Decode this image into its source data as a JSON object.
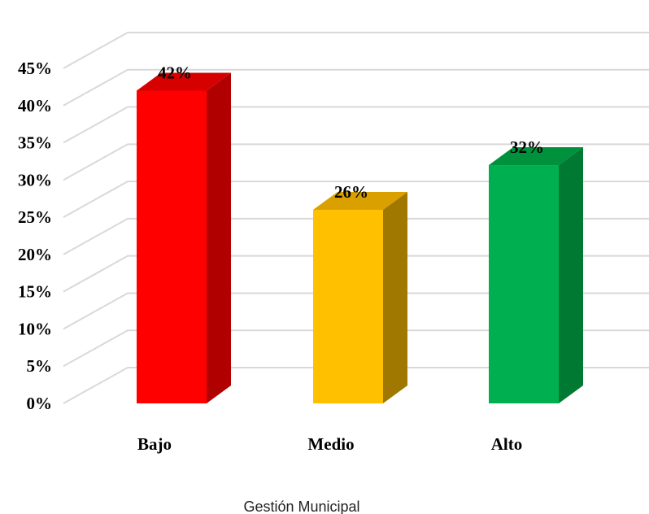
{
  "chart_data": {
    "type": "bar",
    "style": "3d-column",
    "categories": [
      "Bajo",
      "Medio",
      "Alto"
    ],
    "values": [
      42,
      26,
      32
    ],
    "data_labels": [
      "42%",
      "26%",
      "32%"
    ],
    "colors": [
      "#ff0000",
      "#ffc000",
      "#00b050"
    ],
    "side_colors": [
      "#b00000",
      "#a07800",
      "#007a33"
    ],
    "top_colors": [
      "#d60000",
      "#d9a000",
      "#00913c"
    ],
    "xlabel": "Gestión Municipal",
    "ylabel": "",
    "ylim": [
      0,
      45
    ],
    "yticks": [
      0,
      5,
      10,
      15,
      20,
      25,
      30,
      35,
      40,
      45
    ],
    "ytick_labels": [
      "0%",
      "5%",
      "10%",
      "15%",
      "20%",
      "25%",
      "30%",
      "35%",
      "40%",
      "45%"
    ],
    "grid": true,
    "legend": "none"
  }
}
